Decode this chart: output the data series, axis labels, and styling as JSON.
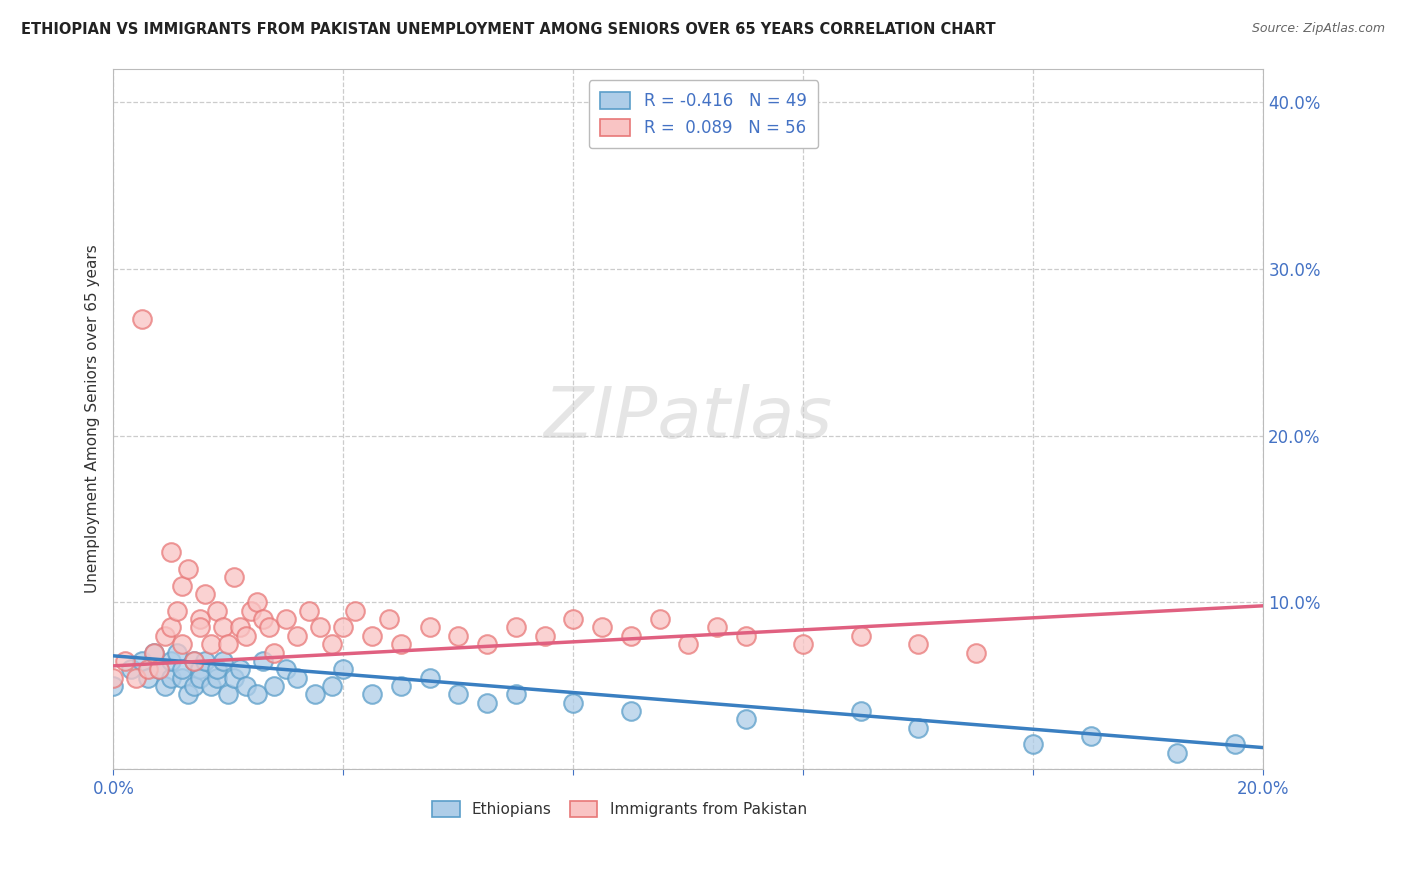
{
  "title": "ETHIOPIAN VS IMMIGRANTS FROM PAKISTAN UNEMPLOYMENT AMONG SENIORS OVER 65 YEARS CORRELATION CHART",
  "source": "Source: ZipAtlas.com",
  "ylabel": "Unemployment Among Seniors over 65 years",
  "background_color": "#ffffff",
  "grid_color": "#cccccc",
  "watermark_text": "ZIPatlas",
  "ethiopians_face_color": "#aecde8",
  "ethiopians_edge_color": "#5b9ec9",
  "pakistan_face_color": "#f9c4c4",
  "pakistan_edge_color": "#e87878",
  "trend_eth_color": "#3a7fc1",
  "trend_pak_color": "#e06080",
  "eth_R": -0.416,
  "eth_N": 49,
  "pak_R": 0.089,
  "pak_N": 56,
  "xlim": [
    0.0,
    0.2
  ],
  "ylim": [
    0.0,
    0.42
  ],
  "right_ytick_labels": [
    "10.0%",
    "20.0%",
    "30.0%",
    "40.0%"
  ],
  "right_ytick_values": [
    0.1,
    0.2,
    0.3,
    0.4
  ],
  "right_ytick_color": "#4472c4",
  "eth_x": [
    0.0,
    0.003,
    0.005,
    0.006,
    0.007,
    0.008,
    0.009,
    0.01,
    0.01,
    0.011,
    0.012,
    0.012,
    0.013,
    0.014,
    0.014,
    0.015,
    0.015,
    0.016,
    0.017,
    0.018,
    0.018,
    0.019,
    0.02,
    0.021,
    0.022,
    0.023,
    0.025,
    0.026,
    0.028,
    0.03,
    0.032,
    0.035,
    0.038,
    0.04,
    0.045,
    0.05,
    0.055,
    0.06,
    0.065,
    0.07,
    0.08,
    0.09,
    0.11,
    0.13,
    0.14,
    0.16,
    0.17,
    0.185,
    0.195
  ],
  "eth_y": [
    0.05,
    0.06,
    0.065,
    0.055,
    0.07,
    0.06,
    0.05,
    0.055,
    0.065,
    0.07,
    0.055,
    0.06,
    0.045,
    0.065,
    0.05,
    0.06,
    0.055,
    0.065,
    0.05,
    0.055,
    0.06,
    0.065,
    0.045,
    0.055,
    0.06,
    0.05,
    0.045,
    0.065,
    0.05,
    0.06,
    0.055,
    0.045,
    0.05,
    0.06,
    0.045,
    0.05,
    0.055,
    0.045,
    0.04,
    0.045,
    0.04,
    0.035,
    0.03,
    0.035,
    0.025,
    0.015,
    0.02,
    0.01,
    0.015
  ],
  "pak_x": [
    0.0,
    0.002,
    0.004,
    0.005,
    0.006,
    0.007,
    0.008,
    0.009,
    0.01,
    0.01,
    0.011,
    0.012,
    0.012,
    0.013,
    0.014,
    0.015,
    0.015,
    0.016,
    0.017,
    0.018,
    0.019,
    0.02,
    0.021,
    0.022,
    0.023,
    0.024,
    0.025,
    0.026,
    0.027,
    0.028,
    0.03,
    0.032,
    0.034,
    0.036,
    0.038,
    0.04,
    0.042,
    0.045,
    0.048,
    0.05,
    0.055,
    0.06,
    0.065,
    0.07,
    0.075,
    0.08,
    0.085,
    0.09,
    0.095,
    0.1,
    0.105,
    0.11,
    0.12,
    0.13,
    0.14,
    0.15
  ],
  "pak_y": [
    0.055,
    0.065,
    0.055,
    0.27,
    0.06,
    0.07,
    0.06,
    0.08,
    0.085,
    0.13,
    0.095,
    0.075,
    0.11,
    0.12,
    0.065,
    0.09,
    0.085,
    0.105,
    0.075,
    0.095,
    0.085,
    0.075,
    0.115,
    0.085,
    0.08,
    0.095,
    0.1,
    0.09,
    0.085,
    0.07,
    0.09,
    0.08,
    0.095,
    0.085,
    0.075,
    0.085,
    0.095,
    0.08,
    0.09,
    0.075,
    0.085,
    0.08,
    0.075,
    0.085,
    0.08,
    0.09,
    0.085,
    0.08,
    0.09,
    0.075,
    0.085,
    0.08,
    0.075,
    0.08,
    0.075,
    0.07
  ],
  "eth_trend_x": [
    0.0,
    0.2
  ],
  "eth_trend_y_start": 0.068,
  "eth_trend_y_end": 0.013,
  "pak_trend_x": [
    0.0,
    0.2
  ],
  "pak_trend_y_start": 0.062,
  "pak_trend_y_end": 0.098,
  "legend_eth_label": "R = -0.416   N = 49",
  "legend_pak_label": "R =  0.089   N = 56",
  "bottom_legend_eth": "Ethiopians",
  "bottom_legend_pak": "Immigrants from Pakistan"
}
